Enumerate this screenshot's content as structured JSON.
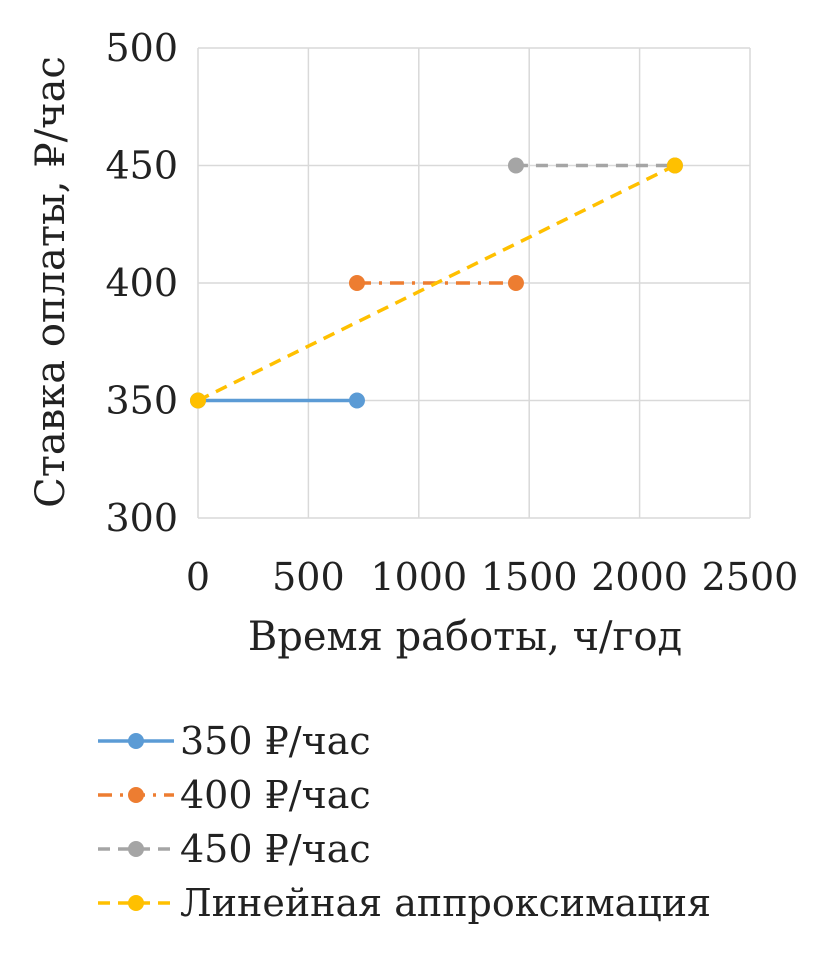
{
  "chart_data": {
    "type": "line",
    "title": "",
    "xlabel": "Время работы, ч/год",
    "ylabel": "Ставка оплаты, ₽/час",
    "xlim": [
      0,
      2500
    ],
    "ylim": [
      300,
      500
    ],
    "xticks": [
      0,
      500,
      1000,
      1500,
      2000,
      2500
    ],
    "yticks": [
      300,
      350,
      400,
      450,
      500
    ],
    "grid": true,
    "legend_position": "bottom",
    "series": [
      {
        "name": "350 ₽/час",
        "color": "#5b9bd5",
        "dash": "solid",
        "x": [
          0,
          720
        ],
        "y": [
          350,
          350
        ]
      },
      {
        "name": "400 ₽/час",
        "color": "#ed7d31",
        "dash": "dashdot",
        "x": [
          720,
          1440
        ],
        "y": [
          400,
          400
        ]
      },
      {
        "name": "450 ₽/час",
        "color": "#a5a5a5",
        "dash": "dashed",
        "x": [
          1440,
          2160
        ],
        "y": [
          450,
          450
        ]
      },
      {
        "name": "Линейная аппроксимация",
        "color": "#ffc000",
        "dash": "dashed",
        "x": [
          0,
          2160
        ],
        "y": [
          350,
          450
        ]
      }
    ]
  }
}
